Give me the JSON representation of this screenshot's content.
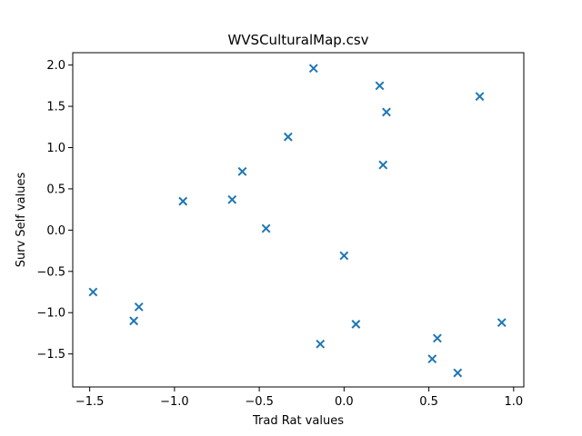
{
  "chart_data": {
    "type": "scatter",
    "title": "WVSCulturalMap.csv",
    "xlabel": "Trad Rat values",
    "ylabel": "Surv Self values",
    "xlim": [
      -1.6,
      1.06
    ],
    "ylim": [
      -1.9,
      2.15
    ],
    "x_ticks": [
      {
        "value": -1.5,
        "label": "−1.5"
      },
      {
        "value": -1.0,
        "label": "−1.0"
      },
      {
        "value": -0.5,
        "label": "−0.5"
      },
      {
        "value": 0.0,
        "label": "0.0"
      },
      {
        "value": 0.5,
        "label": "0.5"
      },
      {
        "value": 1.0,
        "label": "1.0"
      }
    ],
    "y_ticks": [
      {
        "value": -1.5,
        "label": "−1.5"
      },
      {
        "value": -1.0,
        "label": "−1.0"
      },
      {
        "value": -0.5,
        "label": "−0.5"
      },
      {
        "value": 0.0,
        "label": "0.0"
      },
      {
        "value": 0.5,
        "label": "0.5"
      },
      {
        "value": 1.0,
        "label": "1.0"
      },
      {
        "value": 1.5,
        "label": "1.5"
      },
      {
        "value": 2.0,
        "label": "2.0"
      }
    ],
    "marker": "x",
    "color": "#1f77b4",
    "grid": false,
    "points": [
      {
        "x": -1.48,
        "y": -0.75
      },
      {
        "x": -1.24,
        "y": -1.1
      },
      {
        "x": -1.21,
        "y": -0.93
      },
      {
        "x": -0.95,
        "y": 0.35
      },
      {
        "x": -0.66,
        "y": 0.37
      },
      {
        "x": -0.6,
        "y": 0.71
      },
      {
        "x": -0.46,
        "y": 0.02
      },
      {
        "x": -0.33,
        "y": 1.13
      },
      {
        "x": -0.18,
        "y": 1.96
      },
      {
        "x": -0.14,
        "y": -1.38
      },
      {
        "x": 0.0,
        "y": -0.31
      },
      {
        "x": 0.07,
        "y": -1.14
      },
      {
        "x": 0.21,
        "y": 1.75
      },
      {
        "x": 0.23,
        "y": 0.79
      },
      {
        "x": 0.25,
        "y": 1.43
      },
      {
        "x": 0.52,
        "y": -1.56
      },
      {
        "x": 0.55,
        "y": -1.31
      },
      {
        "x": 0.67,
        "y": -1.73
      },
      {
        "x": 0.8,
        "y": 1.62
      },
      {
        "x": 0.93,
        "y": -1.12
      }
    ]
  }
}
